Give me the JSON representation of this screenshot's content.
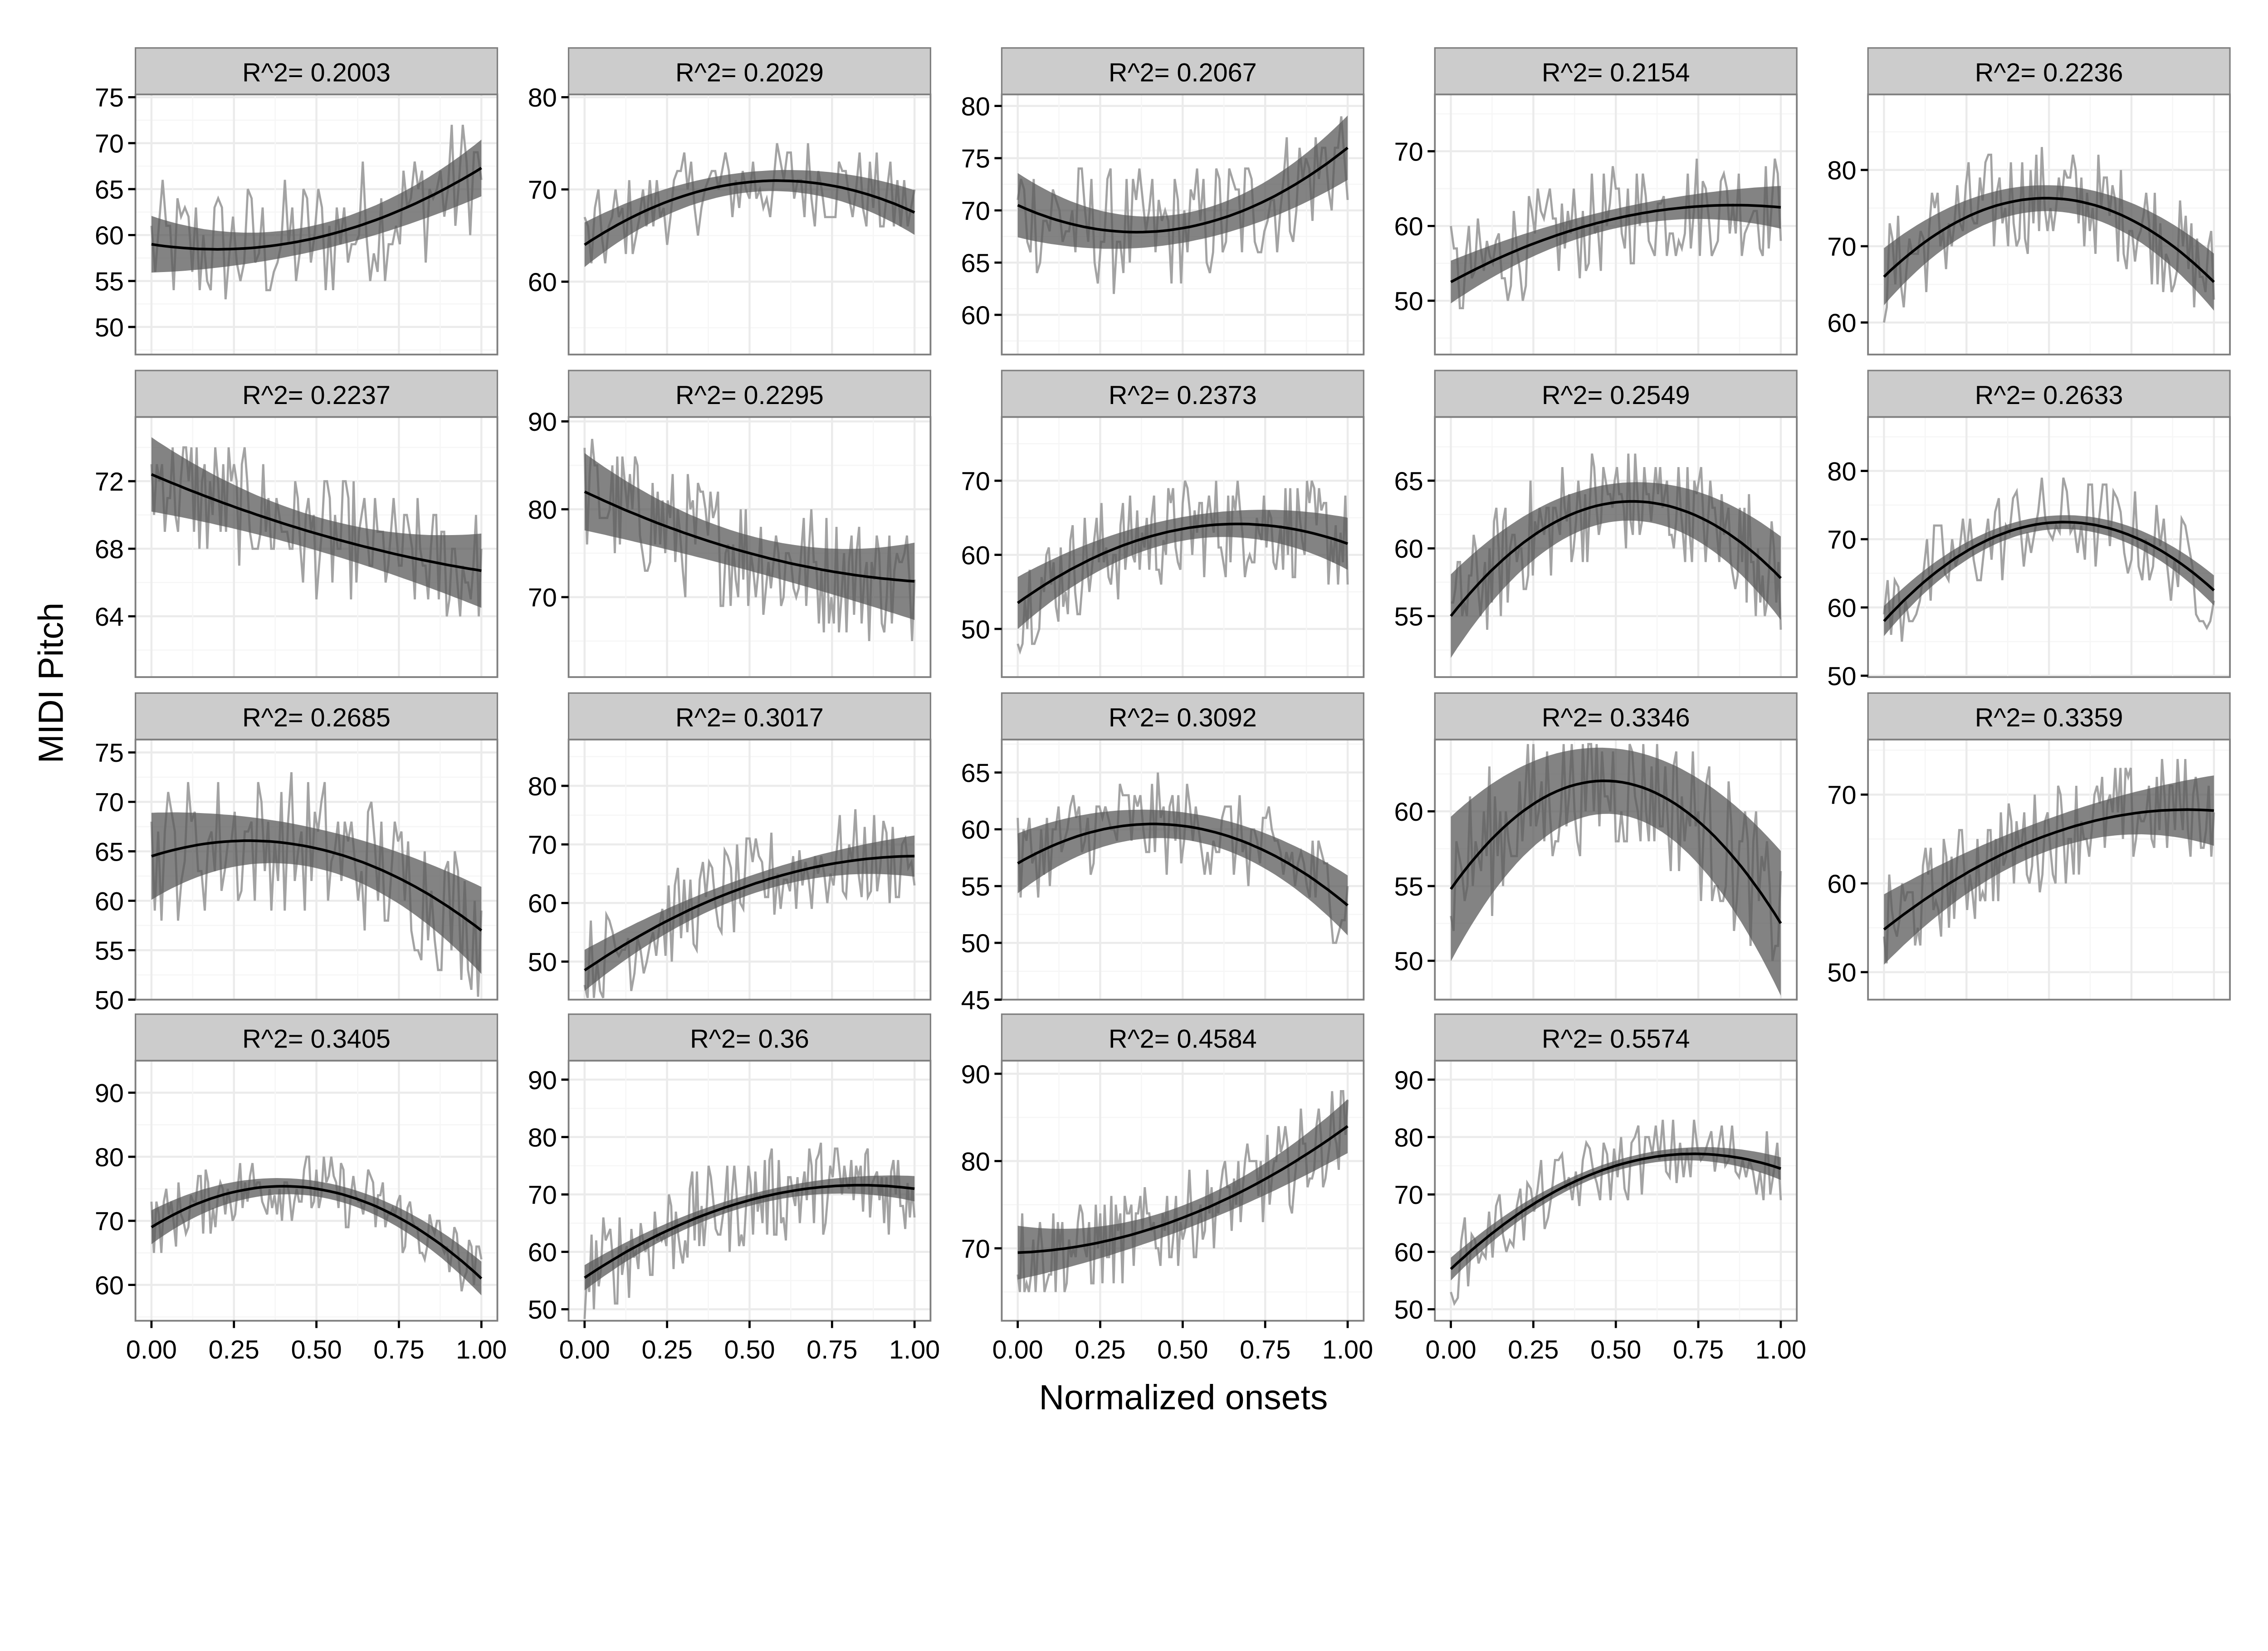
{
  "chart_data": {
    "type": "line",
    "xlabel": "Normalized onsets",
    "ylabel": "MIDI Pitch",
    "xlim": [
      0,
      1
    ],
    "x_ticks": [
      "0.00",
      "0.25",
      "0.50",
      "0.75",
      "1.00"
    ],
    "grid": true,
    "colors": {
      "raw": "#a3a3a3",
      "fit": "#000000",
      "band": "#5a5a5a",
      "strip": "#cccccc",
      "frame": "#7f7f7f",
      "grid_major": "#ebebeb",
      "grid_minor": "#f6f6f6"
    },
    "panels": [
      {
        "label": "R^2= 0.2003",
        "ylim": [
          47,
          75.3
        ],
        "yticks": [
          50,
          55,
          60,
          65,
          70,
          75
        ],
        "fit": [
          59,
          59.7,
          67.3
        ],
        "se": 1.4,
        "noise": 6
      },
      {
        "label": "R^2= 0.2029",
        "ylim": [
          52.1,
          80.3
        ],
        "yticks": [
          60,
          70,
          80
        ],
        "fit": [
          64,
          70.8,
          67.5
        ],
        "se": 1.1,
        "noise": 4
      },
      {
        "label": "R^2= 0.2067",
        "ylim": [
          56.2,
          81.1
        ],
        "yticks": [
          60,
          65,
          70,
          75,
          80
        ],
        "fit": [
          70.5,
          68.3,
          76
        ],
        "se": 1.4,
        "noise": 5
      },
      {
        "label": "R^2= 0.2154",
        "ylim": [
          42.8,
          77.6
        ],
        "yticks": [
          50,
          60,
          70
        ],
        "fit": [
          52.5,
          61,
          62.5
        ],
        "se": 1.3,
        "noise": 6
      },
      {
        "label": "R^2= 0.2236",
        "ylim": [
          55.8,
          89.9
        ],
        "yticks": [
          60,
          70,
          80
        ],
        "fit": [
          66,
          76.3,
          65.3
        ],
        "se": 1.7,
        "noise": 6
      },
      {
        "label": "R^2= 0.2237",
        "ylim": [
          60.4,
          75.8
        ],
        "yticks": [
          64,
          68,
          72
        ],
        "fit": [
          72.4,
          68.9,
          66.7
        ],
        "se": 1.0,
        "noise": 3
      },
      {
        "label": "R^2= 0.2295",
        "ylim": [
          60.9,
          90.5
        ],
        "yticks": [
          70,
          80,
          90
        ],
        "fit": [
          82,
          75,
          71.8
        ],
        "se": 2.0,
        "noise": 6
      },
      {
        "label": "R^2= 0.2373",
        "ylim": [
          43.5,
          78.6
        ],
        "yticks": [
          50,
          60,
          70
        ],
        "fit": [
          53.5,
          63.5,
          61.5
        ],
        "se": 1.6,
        "noise": 6
      },
      {
        "label": "R^2= 0.2549",
        "ylim": [
          50.5,
          69.7
        ],
        "yticks": [
          55,
          60,
          65
        ],
        "fit": [
          55,
          63.4,
          57.8
        ],
        "se": 1.4,
        "noise": 3.5
      },
      {
        "label": "R^2= 0.2633",
        "ylim": [
          49.8,
          87.9
        ],
        "yticks": [
          50,
          60,
          70,
          80
        ],
        "fit": [
          58,
          72.4,
          62.5
        ],
        "se": 1.0,
        "noise": 6
      },
      {
        "label": "R^2= 0.2685",
        "ylim": [
          50,
          76.3
        ],
        "yticks": [
          50,
          55,
          60,
          65,
          70,
          75
        ],
        "fit": [
          64.5,
          65.3,
          57
        ],
        "se": 2.0,
        "noise": 6
      },
      {
        "label": "R^2= 0.3017",
        "ylim": [
          43.5,
          87.9
        ],
        "yticks": [
          50,
          60,
          70,
          80
        ],
        "fit": [
          48.5,
          63,
          68
        ],
        "se": 1.6,
        "noise": 7
      },
      {
        "label": "R^2= 0.3092",
        "ylim": [
          45,
          67.9
        ],
        "yticks": [
          45,
          50,
          55,
          60,
          65
        ],
        "fit": [
          57,
          60.3,
          53.3
        ],
        "se": 1.2,
        "noise": 3.5
      },
      {
        "label": "R^2= 0.3346",
        "ylim": [
          47.4,
          64.8
        ],
        "yticks": [
          50,
          55,
          60
        ],
        "fit": [
          54.8,
          62,
          52.5
        ],
        "se": 2.2,
        "noise": 4
      },
      {
        "label": "R^2= 0.3359",
        "ylim": [
          46.9,
          76.2
        ],
        "yticks": [
          50,
          60,
          70
        ],
        "fit": [
          54.8,
          65.5,
          68.2
        ],
        "se": 1.8,
        "noise": 5
      },
      {
        "label": "R^2= 0.3405",
        "ylim": [
          54.4,
          95
        ],
        "yticks": [
          60,
          70,
          80,
          90
        ],
        "fit": [
          69,
          75,
          61
        ],
        "se": 1.2,
        "noise": 4.5
      },
      {
        "label": "R^2= 0.36",
        "ylim": [
          48,
          93.3
        ],
        "yticks": [
          50,
          60,
          70,
          80,
          90
        ],
        "fit": [
          55.5,
          69,
          71
        ],
        "se": 1.0,
        "noise": 7
      },
      {
        "label": "R^2= 0.4584",
        "ylim": [
          61.7,
          91.5
        ],
        "yticks": [
          70,
          80,
          90
        ],
        "fit": [
          69.5,
          73.5,
          84
        ],
        "se": 1.4,
        "noise": 4.5
      },
      {
        "label": "R^2= 0.5574",
        "ylim": [
          48,
          93.3
        ],
        "yticks": [
          50,
          60,
          70,
          80,
          90
        ],
        "fit": [
          57,
          75,
          74.5
        ],
        "se": 0.9,
        "noise": 5.5
      }
    ]
  }
}
